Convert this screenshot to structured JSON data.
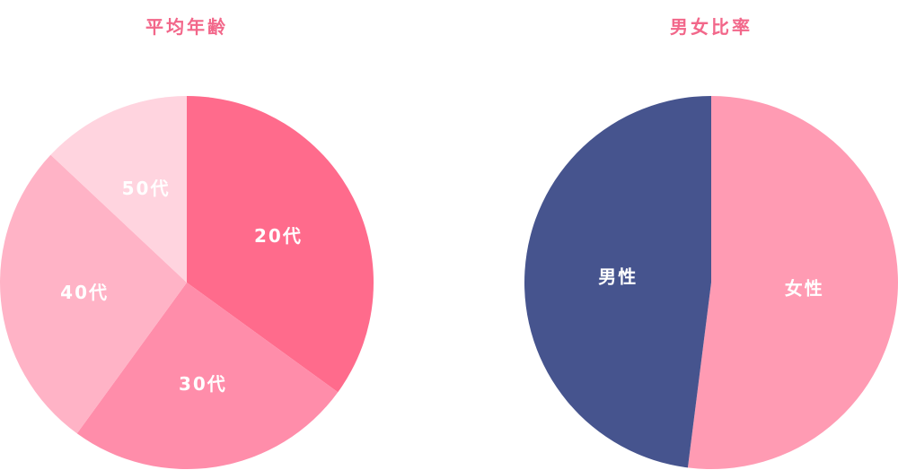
{
  "chart_data": [
    {
      "type": "pie",
      "title": "平均年齢",
      "categories": [
        "20代",
        "30代",
        "40代",
        "50代"
      ],
      "values": [
        35,
        25,
        27,
        13
      ],
      "colors": [
        "#ff6b8c",
        "#ff8daa",
        "#ffb3c6",
        "#ffd4df"
      ],
      "label_positions": "inside"
    },
    {
      "type": "pie",
      "title": "男女比率",
      "categories": [
        "女性",
        "男性"
      ],
      "values": [
        52,
        48
      ],
      "colors": [
        "#ff9bb3",
        "#46548e"
      ],
      "label_positions": "inside"
    }
  ]
}
